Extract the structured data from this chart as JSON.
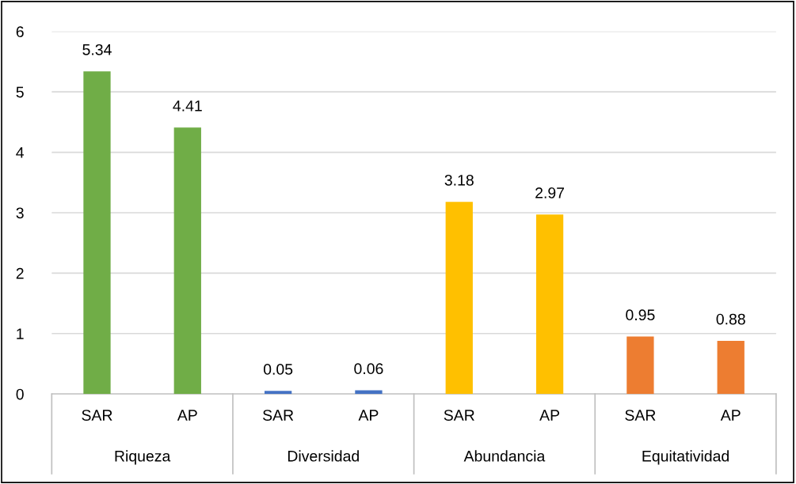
{
  "chart_data": {
    "type": "bar",
    "categories": [
      "SAR",
      "AP",
      "SAR",
      "AP",
      "SAR",
      "AP",
      "SAR",
      "AP"
    ],
    "values": [
      5.34,
      4.41,
      0.05,
      0.06,
      3.18,
      2.97,
      0.95,
      0.88
    ],
    "colors": [
      "#70ad47",
      "#70ad47",
      "#4472c4",
      "#4472c4",
      "#ffc000",
      "#ffc000",
      "#ed7d31",
      "#ed7d31"
    ],
    "annotations": [
      "Riqueza",
      "Diversidad",
      "Abundancia",
      "Equitatividad"
    ],
    "ylim": [
      0,
      6
    ],
    "yticks": [
      0,
      1,
      2,
      3,
      4,
      5,
      6
    ],
    "grid": "y",
    "data_labels": true,
    "legend": false
  }
}
